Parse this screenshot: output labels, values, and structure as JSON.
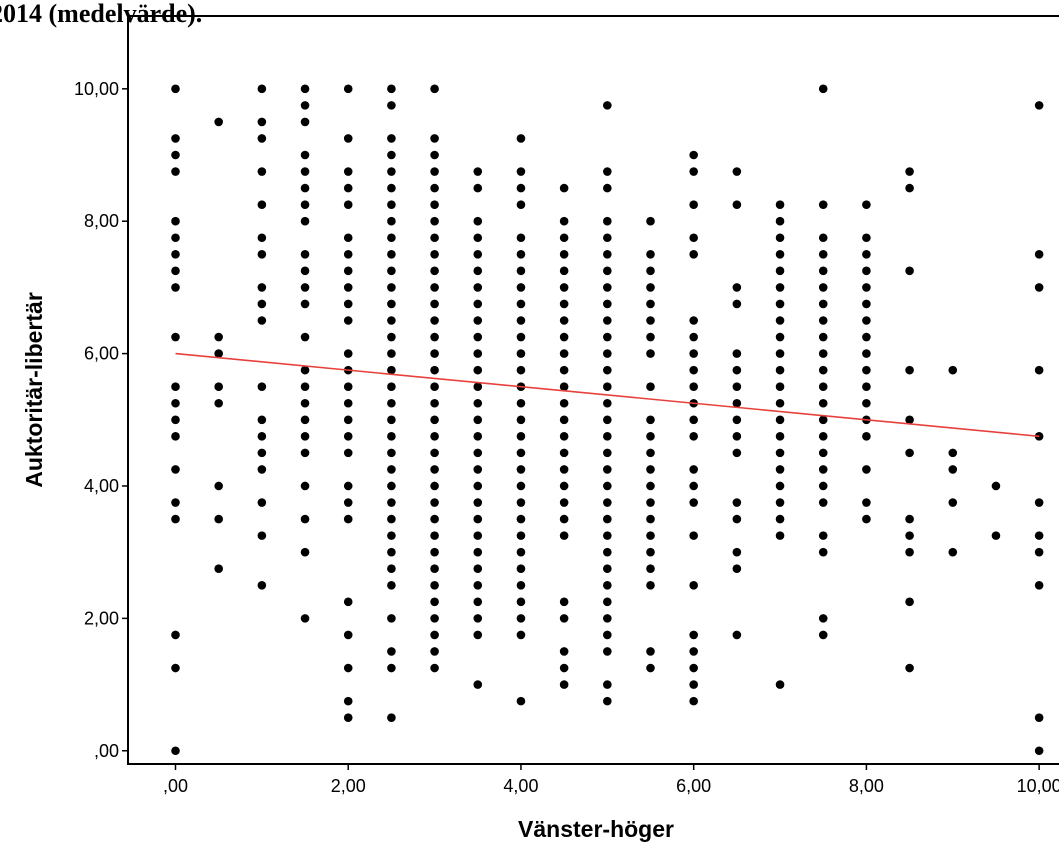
{
  "header_text": "2014 (medelvärde).",
  "chart_data": {
    "type": "scatter",
    "title": "",
    "xlabel": "Vänster-höger",
    "ylabel": "Auktoritär-libertär",
    "xlim": [
      -0.55,
      10.45
    ],
    "ylim": [
      -0.2,
      11.1
    ],
    "x_ticks": [
      0,
      2,
      4,
      6,
      8,
      10
    ],
    "x_tick_labels": [
      ",00",
      "2,00",
      "4,00",
      "6,00",
      "8,00",
      "10,00"
    ],
    "y_ticks": [
      0,
      2,
      4,
      6,
      8,
      10
    ],
    "y_tick_labels": [
      ",00",
      "2,00",
      "4,00",
      "6,00",
      "8,00",
      "10,00"
    ],
    "grid": false,
    "point_color": "#000000",
    "fit_line": {
      "color": "#e8413c",
      "x": [
        0,
        10
      ],
      "y": [
        6.0,
        4.75
      ]
    },
    "columns": [
      {
        "x": 0,
        "y": [
          0,
          1.25,
          1.75,
          3.5,
          3.75,
          4.25,
          4.75,
          5,
          5.25,
          5.5,
          6.25,
          7,
          7.25,
          7.5,
          7.75,
          8,
          8.75,
          9,
          9.25,
          10
        ]
      },
      {
        "x": 0.5,
        "y": [
          2.75,
          3.5,
          4,
          5.25,
          5.5,
          6,
          6.25,
          9.5
        ]
      },
      {
        "x": 1,
        "y": [
          2.5,
          3.25,
          3.75,
          4.25,
          4.5,
          4.75,
          5,
          5.5,
          6.5,
          6.75,
          7,
          7.5,
          7.75,
          8.25,
          8.75,
          9.25,
          9.5,
          10
        ]
      },
      {
        "x": 1.5,
        "y": [
          2,
          3,
          3.5,
          4,
          4.5,
          4.75,
          5,
          5.25,
          5.5,
          5.75,
          6.25,
          6.75,
          7,
          7.25,
          7.5,
          8,
          8.25,
          8.5,
          8.75,
          9,
          9.5,
          9.75,
          10
        ]
      },
      {
        "x": 2,
        "y": [
          0.5,
          0.75,
          1.25,
          1.75,
          2.25,
          3.5,
          3.75,
          4,
          4.5,
          4.75,
          5,
          5.25,
          5.5,
          5.75,
          6,
          6.5,
          6.75,
          7,
          7.25,
          7.5,
          7.75,
          8.25,
          8.5,
          8.75,
          9.25,
          10
        ]
      },
      {
        "x": 2.5,
        "y": [
          0.5,
          1.25,
          1.5,
          2,
          2.5,
          2.75,
          3,
          3.25,
          3.5,
          3.75,
          4,
          4.25,
          4.5,
          4.75,
          5,
          5.25,
          5.5,
          5.75,
          6,
          6.25,
          6.5,
          6.75,
          7,
          7.25,
          7.5,
          7.75,
          8,
          8.25,
          8.5,
          8.75,
          9,
          9.25,
          9.75,
          10
        ]
      },
      {
        "x": 3,
        "y": [
          1.25,
          1.5,
          1.75,
          2,
          2.25,
          2.5,
          2.75,
          3,
          3.25,
          3.5,
          3.75,
          4,
          4.25,
          4.5,
          4.75,
          5,
          5.25,
          5.5,
          5.75,
          6,
          6.25,
          6.5,
          6.75,
          7,
          7.25,
          7.5,
          7.75,
          8,
          8.25,
          8.5,
          8.75,
          9,
          9.25,
          10
        ]
      },
      {
        "x": 3.5,
        "y": [
          1,
          1.75,
          2,
          2.25,
          2.5,
          2.75,
          3,
          3.25,
          3.5,
          3.75,
          4,
          4.25,
          4.5,
          4.75,
          5,
          5.25,
          5.5,
          5.75,
          6,
          6.25,
          6.5,
          6.75,
          7,
          7.25,
          7.5,
          7.75,
          8,
          8.5,
          8.75
        ]
      },
      {
        "x": 4,
        "y": [
          0.75,
          1.75,
          2,
          2.25,
          2.5,
          2.75,
          3,
          3.25,
          3.5,
          3.75,
          4,
          4.25,
          4.5,
          4.75,
          5,
          5.25,
          5.5,
          5.75,
          6,
          6.25,
          6.5,
          6.75,
          7,
          7.25,
          7.5,
          7.75,
          8.25,
          8.5,
          8.75,
          9.25
        ]
      },
      {
        "x": 4.5,
        "y": [
          1,
          1.25,
          1.5,
          2,
          2.25,
          3.25,
          3.5,
          3.75,
          4,
          4.25,
          4.5,
          4.75,
          5,
          5.25,
          5.5,
          5.75,
          6,
          6.25,
          6.5,
          6.75,
          7,
          7.25,
          7.5,
          7.75,
          8,
          8.5
        ]
      },
      {
        "x": 5,
        "y": [
          0.75,
          1,
          1.5,
          1.75,
          2,
          2.25,
          2.5,
          2.75,
          3,
          3.25,
          3.5,
          3.75,
          4,
          4.25,
          4.5,
          4.75,
          5,
          5.25,
          5.5,
          5.75,
          6,
          6.25,
          6.5,
          6.75,
          7,
          7.25,
          7.5,
          7.75,
          8,
          8.5,
          8.75,
          9.75
        ]
      },
      {
        "x": 5.5,
        "y": [
          1.25,
          1.5,
          2.5,
          2.75,
          3,
          3.25,
          3.5,
          3.75,
          4,
          4.25,
          4.5,
          4.75,
          5,
          5.5,
          6,
          6.25,
          6.5,
          6.75,
          7,
          7.25,
          7.5,
          8
        ]
      },
      {
        "x": 6,
        "y": [
          0.75,
          1,
          1.25,
          1.5,
          1.75,
          2.5,
          3.25,
          3.75,
          4,
          4.25,
          4.75,
          5,
          5.25,
          5.5,
          5.75,
          6,
          6.25,
          6.5,
          7.5,
          7.75,
          8.25,
          8.75,
          9
        ]
      },
      {
        "x": 6.5,
        "y": [
          1.75,
          2.75,
          3,
          3.5,
          3.75,
          4.5,
          4.75,
          5,
          5.25,
          5.5,
          5.75,
          6,
          6.75,
          7,
          8.25,
          8.75
        ]
      },
      {
        "x": 7,
        "y": [
          1,
          3.25,
          3.5,
          3.75,
          4,
          4.25,
          4.5,
          4.75,
          5,
          5.25,
          5.5,
          5.75,
          6,
          6.25,
          6.5,
          6.75,
          7,
          7.25,
          7.5,
          7.75,
          8,
          8.25
        ]
      },
      {
        "x": 7.5,
        "y": [
          1.75,
          2,
          3,
          3.25,
          3.75,
          4,
          4.25,
          4.5,
          4.75,
          5,
          5.25,
          5.5,
          5.75,
          6,
          6.25,
          6.5,
          6.75,
          7,
          7.25,
          7.5,
          7.75,
          8.25,
          10
        ]
      },
      {
        "x": 8,
        "y": [
          3.5,
          3.75,
          4.25,
          4.75,
          5,
          5.25,
          5.5,
          5.75,
          6,
          6.25,
          6.5,
          6.75,
          7,
          7.25,
          7.5,
          7.75,
          8.25
        ]
      },
      {
        "x": 8.5,
        "y": [
          1.25,
          2.25,
          3,
          3.25,
          3.5,
          4.5,
          5,
          5.75,
          7.25,
          8.5,
          8.75
        ]
      },
      {
        "x": 9,
        "y": [
          3,
          3.75,
          4.25,
          4.5,
          5.75
        ]
      },
      {
        "x": 9.5,
        "y": [
          3.25,
          4
        ]
      },
      {
        "x": 10,
        "y": [
          0,
          0.5,
          2.5,
          3,
          3.25,
          3.75,
          4.75,
          5.75,
          7,
          7.5,
          9.75
        ]
      }
    ]
  }
}
